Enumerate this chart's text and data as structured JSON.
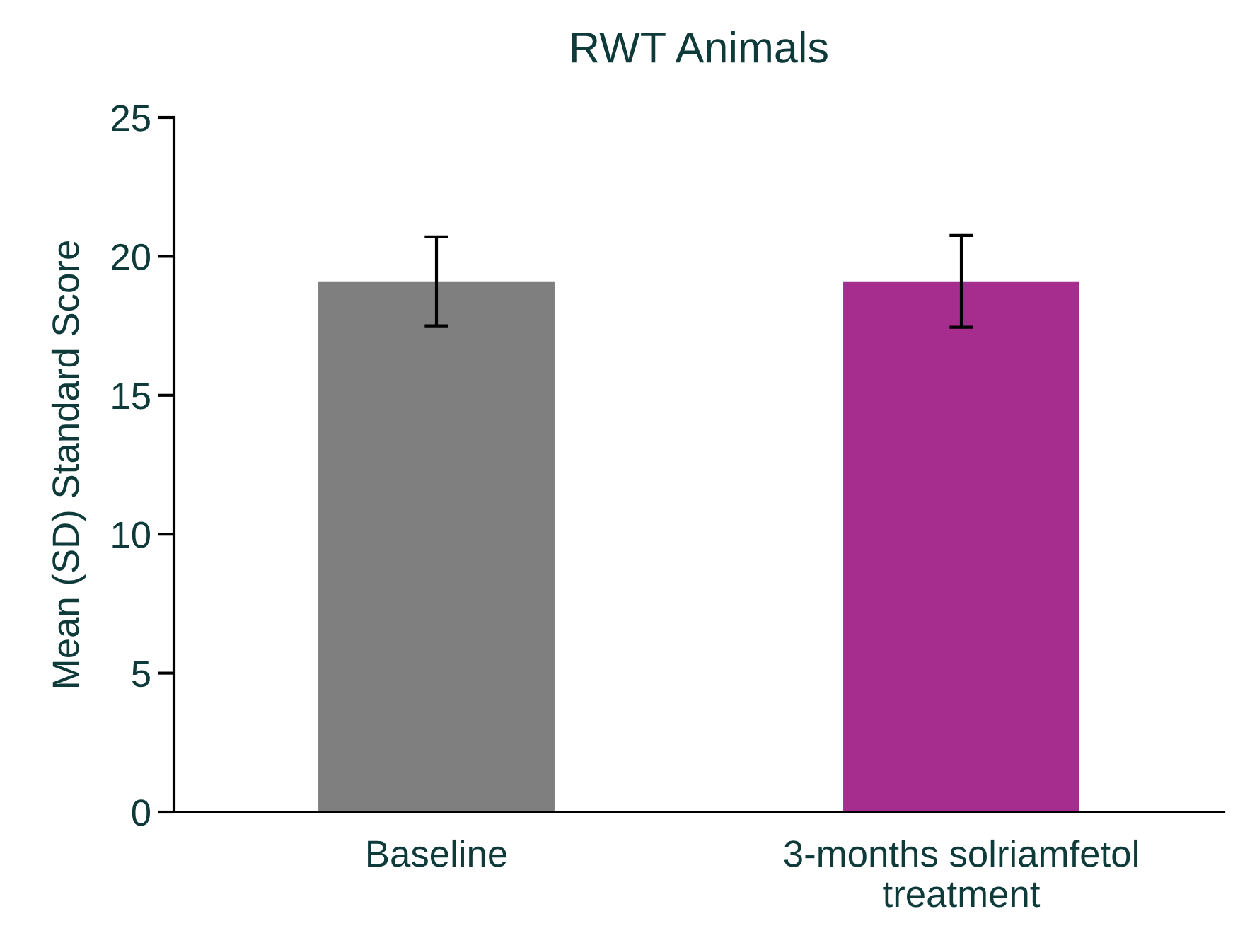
{
  "chart_data": {
    "type": "bar",
    "title": "RWT Animals",
    "ylabel": "Mean (SD) Standard Score",
    "categories": [
      "Baseline",
      "3-months solriamfetol\ntreatment"
    ],
    "values": [
      19.1,
      19.1
    ],
    "errors": [
      1.6,
      1.65
    ],
    "colors": [
      "#7f7f7f",
      "#a62d8e"
    ],
    "ylim": [
      0,
      25
    ],
    "yticks": [
      0,
      5,
      10,
      15,
      20,
      25
    ],
    "grid": false,
    "legend": false
  }
}
